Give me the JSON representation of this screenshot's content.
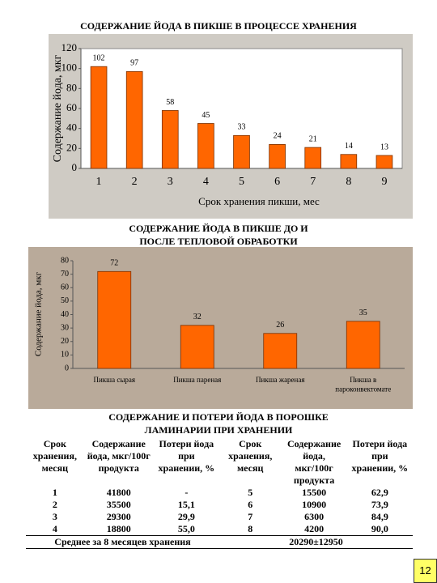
{
  "chart_data": [
    {
      "type": "bar",
      "title": "СОДЕРЖАНИЕ ЙОДА В ПИКШЕ В ПРОЦЕССЕ ХРАНЕНИЯ",
      "x_label": "Срок хранения пикши, мес",
      "y_label": "Содержание йода, мкг",
      "categories": [
        1,
        2,
        3,
        4,
        5,
        6,
        7,
        8,
        9
      ],
      "values": [
        102,
        97,
        58,
        45,
        33,
        24,
        21,
        14,
        13
      ],
      "color": "#ff6600",
      "ylim": [
        0,
        120
      ],
      "yticks": [
        0,
        20,
        40,
        60,
        80,
        100,
        120
      ],
      "grid": false
    },
    {
      "type": "bar",
      "title": "СОДЕРЖАНИЕ ЙОДА В ПИКШЕ ДО И ПОСЛЕ ТЕПЛОВОЙ ОБРАБОТКИ",
      "y_label": "Содержание йода, мкг",
      "categories": [
        "Пикша сырая",
        "Пикша пареная",
        "Пикша жареная",
        "Пикша в пароконвектомате"
      ],
      "values": [
        72,
        32,
        26,
        35
      ],
      "color": "#ff6600",
      "ylim": [
        0,
        80
      ],
      "yticks": [
        0,
        10,
        20,
        30,
        40,
        50,
        60,
        70,
        80
      ],
      "grid": false
    }
  ],
  "table": {
    "title": "СОДЕРЖАНИЕ И ПОТЕРИ ЙОДА В ПОРОШКЕ ЛАМИНАРИИ ПРИ ХРАНЕНИИ",
    "header": [
      "Срок хранения, месяц",
      "Содержание йода, мкг/100г продукта",
      "Потери йода при хранении, %",
      "Срок хранения, месяц",
      "Содержание йода, мкг/100г продукта",
      "Потери йода при хранении, %"
    ],
    "rows": [
      [
        "1",
        "41800",
        "-",
        "5",
        "15500",
        "62,9"
      ],
      [
        "2",
        "35500",
        "15,1",
        "6",
        "10900",
        "73,9"
      ],
      [
        "3",
        "29300",
        "29,9",
        "7",
        "6300",
        "84,9"
      ],
      [
        "4",
        "18800",
        "55,0",
        "8",
        "4200",
        "90,0"
      ]
    ],
    "footer": [
      "Среднее за 8 месяцев хранения",
      "20290±12950"
    ]
  },
  "page_number": "12"
}
